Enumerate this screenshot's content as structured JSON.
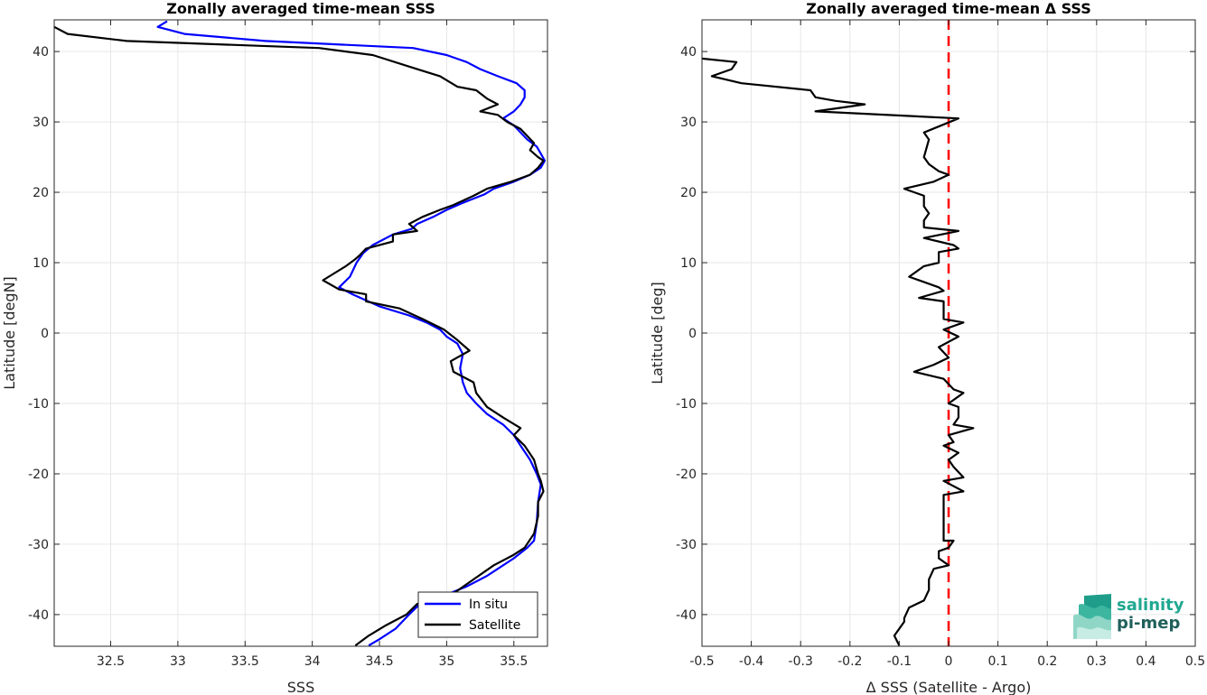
{
  "chart_data": [
    {
      "type": "line",
      "title": "Zonally averaged time-mean SSS",
      "xlabel": "SSS",
      "ylabel": "Latitude [degN]",
      "xlim": [
        32.08,
        35.75
      ],
      "ylim": [
        -44.5,
        44.5
      ],
      "xticks": [
        32.5,
        33,
        33.5,
        34,
        34.5,
        35,
        35.5
      ],
      "xtick_labels": [
        "32.5",
        "33",
        "33.5",
        "34",
        "34.5",
        "35",
        "35.5"
      ],
      "yticks": [
        -40,
        -30,
        -20,
        -10,
        0,
        10,
        20,
        30,
        40
      ],
      "ytick_labels": [
        "-40",
        "-30",
        "-20",
        "-10",
        "0",
        "10",
        "20",
        "30",
        "40"
      ],
      "grid": true,
      "legend": "bottom-right",
      "series": [
        {
          "name": "In situ",
          "color": "#0000ff",
          "points": [
            [
              32.92,
              44.3
            ],
            [
              32.85,
              43.5
            ],
            [
              33.05,
              42.5
            ],
            [
              33.65,
              41.5
            ],
            [
              34.75,
              40.5
            ],
            [
              35,
              39.5
            ],
            [
              35.15,
              38.5
            ],
            [
              35.25,
              37.5
            ],
            [
              35.38,
              36.5
            ],
            [
              35.52,
              35.5
            ],
            [
              35.58,
              34.5
            ],
            [
              35.58,
              33.5
            ],
            [
              35.55,
              32.5
            ],
            [
              35.5,
              31.5
            ],
            [
              35.42,
              30.5
            ],
            [
              35.5,
              29.5
            ],
            [
              35.55,
              28.5
            ],
            [
              35.6,
              27.5
            ],
            [
              35.67,
              26.5
            ],
            [
              35.7,
              25.5
            ],
            [
              35.73,
              24.5
            ],
            [
              35.7,
              23.5
            ],
            [
              35.62,
              22.5
            ],
            [
              35.5,
              21.5
            ],
            [
              35.35,
              20.5
            ],
            [
              35.28,
              19.7
            ],
            [
              35.12,
              18.5
            ],
            [
              35,
              17.5
            ],
            [
              34.9,
              16.5
            ],
            [
              34.78,
              15.5
            ],
            [
              34.74,
              14.8
            ],
            [
              34.6,
              14
            ],
            [
              34.45,
              12.5
            ],
            [
              34.38,
              11.4
            ],
            [
              34.33,
              10
            ],
            [
              34.28,
              8
            ],
            [
              34.2,
              6.5
            ],
            [
              34.3,
              5.5
            ],
            [
              34.5,
              3.8
            ],
            [
              34.72,
              2.5
            ],
            [
              34.85,
              1.5
            ],
            [
              34.95,
              0.5
            ],
            [
              35,
              -0.5
            ],
            [
              35.08,
              -1.5
            ],
            [
              35.12,
              -3
            ],
            [
              35.1,
              -5
            ],
            [
              35.12,
              -7
            ],
            [
              35.15,
              -8.5
            ],
            [
              35.22,
              -10
            ],
            [
              35.3,
              -11.5
            ],
            [
              35.42,
              -13
            ],
            [
              35.5,
              -14.5
            ],
            [
              35.55,
              -16
            ],
            [
              35.62,
              -18
            ],
            [
              35.67,
              -20
            ],
            [
              35.7,
              -21.5
            ],
            [
              35.68,
              -24
            ],
            [
              35.67,
              -27
            ],
            [
              35.65,
              -29.5
            ],
            [
              35.6,
              -30.5
            ],
            [
              35.5,
              -32
            ],
            [
              35.38,
              -33.5
            ],
            [
              35.3,
              -34.5
            ],
            [
              35.15,
              -36
            ],
            [
              35.02,
              -37
            ],
            [
              34.8,
              -38.5
            ],
            [
              34.72,
              -40
            ],
            [
              34.62,
              -42
            ],
            [
              34.5,
              -43.5
            ],
            [
              34.42,
              -44.4
            ]
          ]
        },
        {
          "name": "Satellite",
          "color": "#000000",
          "points": [
            [
              32.08,
              43.5
            ],
            [
              32.18,
              42.5
            ],
            [
              32.62,
              41.5
            ],
            [
              34.05,
              40.5
            ],
            [
              34.45,
              39.5
            ],
            [
              34.78,
              37.5
            ],
            [
              34.95,
              36.5
            ],
            [
              35.08,
              35
            ],
            [
              35.22,
              34.5
            ],
            [
              35.3,
              33.3
            ],
            [
              35.38,
              32.5
            ],
            [
              35.25,
              31.5
            ],
            [
              35.38,
              31
            ],
            [
              35.45,
              30
            ],
            [
              35.55,
              29
            ],
            [
              35.6,
              28
            ],
            [
              35.65,
              27
            ],
            [
              35.62,
              26
            ],
            [
              35.68,
              25
            ],
            [
              35.72,
              24.5
            ],
            [
              35.68,
              23.5
            ],
            [
              35.62,
              22.5
            ],
            [
              35.48,
              21.5
            ],
            [
              35.3,
              20.5
            ],
            [
              35.2,
              19.5
            ],
            [
              35.05,
              18.2
            ],
            [
              34.95,
              17.5
            ],
            [
              34.82,
              16.5
            ],
            [
              34.72,
              15.5
            ],
            [
              34.78,
              14.5
            ],
            [
              34.6,
              14
            ],
            [
              34.6,
              13
            ],
            [
              34.4,
              12
            ],
            [
              34.35,
              11
            ],
            [
              34.32,
              10.5
            ],
            [
              34.25,
              9.5
            ],
            [
              34.08,
              7.5
            ],
            [
              34.2,
              6.2
            ],
            [
              34.4,
              5.5
            ],
            [
              34.4,
              4.5
            ],
            [
              34.65,
              3.5
            ],
            [
              34.82,
              2
            ],
            [
              34.98,
              0.5
            ],
            [
              35.08,
              -1
            ],
            [
              35.17,
              -2.5
            ],
            [
              35.03,
              -4
            ],
            [
              35.05,
              -5.5
            ],
            [
              35.2,
              -7
            ],
            [
              35.22,
              -8.5
            ],
            [
              35.3,
              -10.5
            ],
            [
              35.42,
              -12
            ],
            [
              35.55,
              -13.5
            ],
            [
              35.5,
              -14.5
            ],
            [
              35.58,
              -16
            ],
            [
              35.65,
              -18
            ],
            [
              35.68,
              -20
            ],
            [
              35.7,
              -21
            ],
            [
              35.72,
              -22.5
            ],
            [
              35.68,
              -24
            ],
            [
              35.68,
              -26
            ],
            [
              35.65,
              -28.5
            ],
            [
              35.58,
              -30.5
            ],
            [
              35.5,
              -31.5
            ],
            [
              35.35,
              -33
            ],
            [
              35.2,
              -35
            ],
            [
              35.05,
              -37
            ],
            [
              34.78,
              -38.5
            ],
            [
              34.7,
              -40
            ],
            [
              34.55,
              -41.5
            ],
            [
              34.42,
              -43
            ],
            [
              34.32,
              -44.4
            ]
          ]
        }
      ]
    },
    {
      "type": "line",
      "title": "Zonally averaged time-mean Δ SSS",
      "xlabel": "Δ SSS (Satellite - Argo)",
      "ylabel": "Latitude [deg]",
      "xlim": [
        -0.5,
        0.5
      ],
      "ylim": [
        -44.5,
        44.5
      ],
      "xticks": [
        -0.5,
        -0.4,
        -0.3,
        -0.2,
        -0.1,
        0,
        0.1,
        0.2,
        0.3,
        0.4,
        0.5
      ],
      "xtick_labels": [
        "-0.5",
        "-0.4",
        "-0.3",
        "-0.2",
        "-0.1",
        "0",
        "0.1",
        "0.2",
        "0.3",
        "0.4",
        "0.5"
      ],
      "yticks": [
        -40,
        -30,
        -20,
        -10,
        0,
        10,
        20,
        30,
        40
      ],
      "ytick_labels": [
        "-40",
        "-30",
        "-20",
        "-10",
        "0",
        "10",
        "20",
        "30",
        "40"
      ],
      "grid": true,
      "reference_line": {
        "x": 0,
        "color": "#ff0000",
        "style": "dashed"
      },
      "series": [
        {
          "color": "#000000",
          "points": [
            [
              -0.5,
              39
            ],
            [
              -0.43,
              38.5
            ],
            [
              -0.44,
              37.5
            ],
            [
              -0.48,
              36.5
            ],
            [
              -0.42,
              35.5
            ],
            [
              -0.28,
              34.5
            ],
            [
              -0.27,
              33.5
            ],
            [
              -0.23,
              33
            ],
            [
              -0.17,
              32.5
            ],
            [
              -0.27,
              31.5
            ],
            [
              0.02,
              30.5
            ],
            [
              -0.05,
              28.5
            ],
            [
              -0.04,
              27.5
            ],
            [
              -0.05,
              25
            ],
            [
              -0.04,
              24
            ],
            [
              -0.02,
              23
            ],
            [
              0,
              22.5
            ],
            [
              -0.03,
              21.5
            ],
            [
              -0.09,
              20.5
            ],
            [
              -0.05,
              19.5
            ],
            [
              -0.05,
              18
            ],
            [
              -0.04,
              17
            ],
            [
              -0.05,
              16
            ],
            [
              -0.05,
              15
            ],
            [
              0.02,
              14.5
            ],
            [
              -0.05,
              13.5
            ],
            [
              0.01,
              12.5
            ],
            [
              0.02,
              12
            ],
            [
              -0.02,
              11.5
            ],
            [
              -0.02,
              10
            ],
            [
              -0.05,
              9.5
            ],
            [
              -0.08,
              8
            ],
            [
              -0.02,
              6.5
            ],
            [
              -0.01,
              6
            ],
            [
              -0.06,
              5
            ],
            [
              -0.01,
              4.5
            ],
            [
              -0.01,
              3.5
            ],
            [
              -0.01,
              2
            ],
            [
              0.03,
              1.5
            ],
            [
              -0.01,
              0.5
            ],
            [
              0.02,
              -0.5
            ],
            [
              -0.02,
              -2
            ],
            [
              0,
              -3.5
            ],
            [
              -0.03,
              -4.5
            ],
            [
              -0.07,
              -5.5
            ],
            [
              -0.01,
              -6.5
            ],
            [
              0.01,
              -8
            ],
            [
              0.03,
              -8.5
            ],
            [
              0,
              -10
            ],
            [
              0.02,
              -10.5
            ],
            [
              0.02,
              -12
            ],
            [
              0.01,
              -13
            ],
            [
              0.05,
              -13.5
            ],
            [
              0,
              -14.5
            ],
            [
              0.01,
              -15.5
            ],
            [
              -0.01,
              -16
            ],
            [
              0.02,
              -17
            ],
            [
              0,
              -18
            ],
            [
              0.01,
              -19
            ],
            [
              0.03,
              -20.5
            ],
            [
              -0.01,
              -21
            ],
            [
              0.03,
              -22.5
            ],
            [
              -0.01,
              -23
            ],
            [
              -0.01,
              -24.5
            ],
            [
              -0.01,
              -26
            ],
            [
              -0.01,
              -28
            ],
            [
              -0.01,
              -29.5
            ],
            [
              0.01,
              -29.5
            ],
            [
              0,
              -30.5
            ],
            [
              -0.02,
              -31
            ],
            [
              -0.02,
              -32
            ],
            [
              0,
              -33
            ],
            [
              -0.03,
              -33.5
            ],
            [
              -0.04,
              -35
            ],
            [
              -0.04,
              -36.5
            ],
            [
              -0.05,
              -38
            ],
            [
              -0.08,
              -39
            ],
            [
              -0.09,
              -40.5
            ],
            [
              -0.09,
              -41
            ],
            [
              -0.1,
              -42
            ],
            [
              -0.11,
              -43
            ],
            [
              -0.1,
              -44.4
            ]
          ]
        }
      ]
    }
  ],
  "legend": {
    "items": [
      {
        "label": "In situ",
        "color": "#0000ff"
      },
      {
        "label": "Satellite",
        "color": "#000000"
      }
    ]
  },
  "logo": {
    "line1": "salinity",
    "line2": "pi-mep",
    "line1_color": "#1fa890",
    "line2_color": "#1f5f5a"
  }
}
